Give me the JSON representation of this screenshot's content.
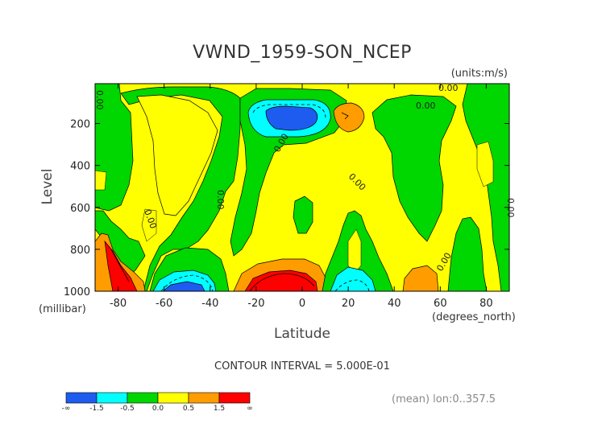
{
  "chart_data": {
    "type": "heatmap",
    "title": "VWND_1959-SON_NCEP",
    "units_label": "(units:m/s)",
    "xlabel": "Latitude",
    "ylabel": "Level",
    "x_units_label": "(degrees_north)",
    "y_units_label": "(millibar)",
    "xlim": [
      -90,
      90
    ],
    "ylim": [
      1000,
      10
    ],
    "x_ticks": [
      -80,
      -60,
      -40,
      -20,
      0,
      20,
      40,
      60,
      80
    ],
    "x_tick_labels": [
      "-80",
      "-60",
      "-40",
      "-20",
      "0",
      "20",
      "40",
      "60",
      "80"
    ],
    "y_ticks": [
      200,
      400,
      600,
      800,
      1000
    ],
    "y_tick_labels": [
      "200",
      "400",
      "600",
      "800",
      "1000"
    ],
    "contour_labels": [
      "0.00",
      "0.00",
      "0.00",
      "0.00",
      "0.00",
      "0.00",
      "0.00",
      "0.00",
      "0.00"
    ],
    "contour_interval_text": "CONTOUR INTERVAL = 5.000E-01",
    "footer_text": "(mean) lon:0..357.5",
    "colorbar": {
      "bins": [
        {
          "from": "-∞",
          "to": -1.5,
          "color": "#1e5cf0"
        },
        {
          "from": -1.5,
          "to": -0.5,
          "color": "#00ffff"
        },
        {
          "from": -0.5,
          "to": 0.0,
          "color": "#00d600"
        },
        {
          "from": 0.0,
          "to": 0.5,
          "color": "#ffff00"
        },
        {
          "from": 0.5,
          "to": 1.5,
          "color": "#ff9c00"
        },
        {
          "from": 1.5,
          "to": "∞",
          "color": "#ff0000"
        }
      ],
      "tick_labels": [
        "-∞",
        "-1.5",
        "-0.5",
        "0.0",
        "0.5",
        "1.5",
        "∞"
      ]
    }
  }
}
